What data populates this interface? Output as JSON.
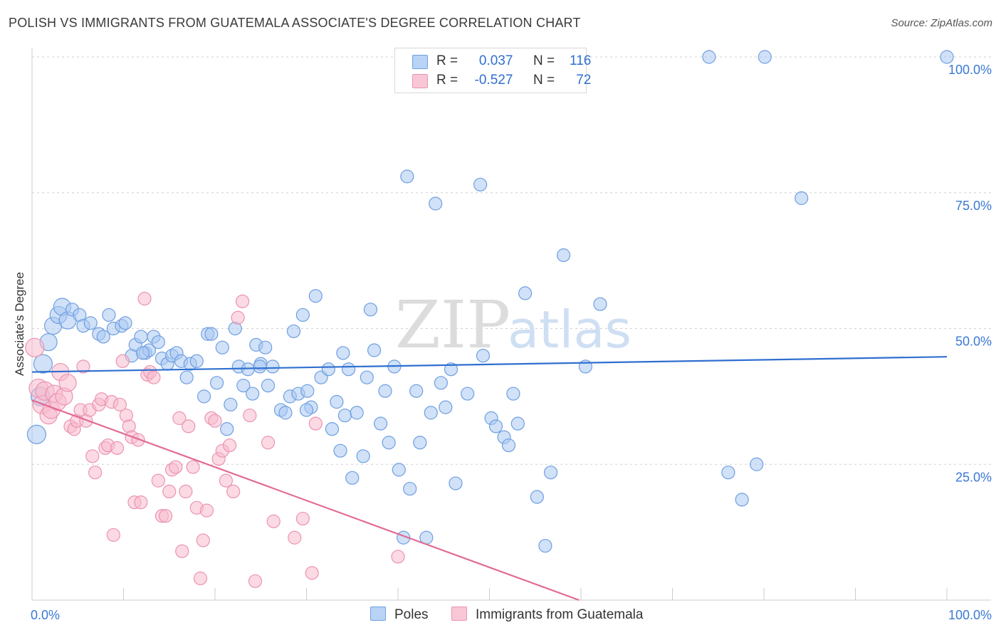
{
  "title": "POLISH VS IMMIGRANTS FROM GUATEMALA ASSOCIATE'S DEGREE CORRELATION CHART",
  "source": "Source: ZipAtlas.com",
  "watermark": {
    "zip": "ZIP",
    "atlas": "atlas"
  },
  "legend": {
    "r_label": "R =",
    "n_label": "N =",
    "rows": [
      {
        "r": "0.037",
        "n": "116"
      },
      {
        "r": "-0.527",
        "n": "72"
      }
    ]
  },
  "colors": {
    "poles_fill": "#a9c8f2",
    "poles_stroke": "#6f9fe0",
    "poles_line": "#2f6fd0",
    "guatemala_fill": "#f7bccd",
    "guatemala_stroke": "#ec93b0",
    "guatemala_line": "#e26b96",
    "tick_text": "#3a78d4",
    "grid": "#d0d0d0"
  },
  "chart_data": {
    "type": "scatter",
    "title": "POLISH VS IMMIGRANTS FROM GUATEMALA ASSOCIATE'S DEGREE CORRELATION CHART",
    "xlabel": "",
    "ylabel": "Associate's Degree",
    "xlim": [
      0,
      100
    ],
    "ylim": [
      0,
      100
    ],
    "x_tick_labels": [
      "0.0%",
      "100.0%"
    ],
    "y_ticks": [
      25,
      50,
      75,
      100
    ],
    "y_tick_labels": [
      "25.0%",
      "50.0%",
      "75.0%",
      "100.0%"
    ],
    "grid": "horizontal dashed",
    "legend_placement": "bottom-center",
    "series": [
      {
        "name": "Poles",
        "R": 0.037,
        "N": 116,
        "trend": {
          "x": [
            0,
            100
          ],
          "y": [
            42.0,
            44.8
          ]
        },
        "points": [
          [
            0.5,
            30.5
          ],
          [
            0.9,
            37.5
          ],
          [
            1.2,
            43.5
          ],
          [
            1.8,
            47.5
          ],
          [
            2.3,
            50.5
          ],
          [
            2.9,
            52.5
          ],
          [
            3.3,
            54.0
          ],
          [
            3.9,
            51.5
          ],
          [
            4.4,
            53.5
          ],
          [
            5.2,
            52.5
          ],
          [
            5.6,
            50.5
          ],
          [
            6.4,
            51.0
          ],
          [
            7.3,
            49.0
          ],
          [
            7.8,
            48.5
          ],
          [
            8.4,
            52.5
          ],
          [
            8.9,
            50.0
          ],
          [
            9.8,
            50.5
          ],
          [
            10.2,
            51.0
          ],
          [
            10.9,
            45.0
          ],
          [
            11.3,
            47.0
          ],
          [
            11.9,
            48.5
          ],
          [
            12.4,
            45.5
          ],
          [
            12.8,
            46.0
          ],
          [
            13.3,
            48.5
          ],
          [
            13.8,
            47.5
          ],
          [
            14.2,
            44.5
          ],
          [
            14.8,
            43.5
          ],
          [
            15.3,
            45.0
          ],
          [
            15.8,
            45.5
          ],
          [
            16.3,
            44.0
          ],
          [
            16.9,
            41.0
          ],
          [
            17.3,
            43.5
          ],
          [
            18.0,
            44.0
          ],
          [
            18.8,
            37.5
          ],
          [
            19.2,
            49.0
          ],
          [
            19.6,
            49.0
          ],
          [
            20.2,
            40.0
          ],
          [
            20.8,
            46.5
          ],
          [
            21.3,
            31.5
          ],
          [
            21.7,
            36.0
          ],
          [
            22.2,
            50.0
          ],
          [
            22.6,
            43.0
          ],
          [
            23.1,
            39.5
          ],
          [
            23.6,
            42.5
          ],
          [
            24.1,
            38.0
          ],
          [
            24.5,
            47.0
          ],
          [
            25.0,
            43.5
          ],
          [
            25.5,
            46.5
          ],
          [
            25.8,
            39.5
          ],
          [
            26.3,
            43.0
          ],
          [
            27.2,
            35.0
          ],
          [
            27.7,
            34.5
          ],
          [
            28.2,
            37.5
          ],
          [
            28.6,
            49.5
          ],
          [
            29.1,
            38.0
          ],
          [
            29.6,
            52.5
          ],
          [
            30.1,
            38.5
          ],
          [
            30.5,
            35.5
          ],
          [
            31.0,
            56.0
          ],
          [
            31.6,
            41.0
          ],
          [
            32.4,
            42.5
          ],
          [
            32.8,
            31.5
          ],
          [
            33.3,
            36.5
          ],
          [
            33.7,
            27.5
          ],
          [
            34.2,
            34.0
          ],
          [
            34.6,
            42.5
          ],
          [
            35.0,
            22.5
          ],
          [
            35.5,
            34.5
          ],
          [
            36.2,
            26.5
          ],
          [
            36.6,
            41.0
          ],
          [
            37.0,
            53.5
          ],
          [
            37.4,
            46.0
          ],
          [
            38.1,
            32.5
          ],
          [
            38.6,
            38.5
          ],
          [
            39.0,
            29.0
          ],
          [
            39.6,
            43.0
          ],
          [
            40.1,
            24.0
          ],
          [
            40.6,
            11.5
          ],
          [
            41.3,
            20.5
          ],
          [
            42.0,
            38.5
          ],
          [
            42.4,
            29.0
          ],
          [
            43.1,
            11.5
          ],
          [
            43.6,
            34.5
          ],
          [
            44.1,
            73.0
          ],
          [
            44.7,
            40.0
          ],
          [
            45.2,
            35.5
          ],
          [
            45.8,
            42.5
          ],
          [
            46.3,
            21.5
          ],
          [
            47.6,
            38.0
          ],
          [
            49.0,
            76.5
          ],
          [
            49.3,
            45.0
          ],
          [
            50.2,
            33.5
          ],
          [
            50.7,
            32.0
          ],
          [
            51.6,
            30.0
          ],
          [
            52.1,
            28.5
          ],
          [
            52.6,
            38.0
          ],
          [
            53.1,
            32.5
          ],
          [
            53.9,
            56.5
          ],
          [
            55.2,
            19.0
          ],
          [
            56.1,
            10.0
          ],
          [
            56.7,
            23.5
          ],
          [
            58.1,
            63.5
          ],
          [
            60.5,
            43.0
          ],
          [
            62.1,
            54.5
          ],
          [
            74.0,
            100.0
          ],
          [
            76.1,
            23.5
          ],
          [
            77.6,
            18.5
          ],
          [
            79.2,
            25.0
          ],
          [
            80.1,
            100.0
          ],
          [
            84.1,
            74.0
          ],
          [
            100.0,
            100.0
          ],
          [
            12.1,
            45.5
          ],
          [
            24.9,
            43.0
          ],
          [
            30.0,
            35.0
          ],
          [
            41.0,
            78.0
          ],
          [
            34.0,
            45.5
          ]
        ]
      },
      {
        "name": "Immigrants from Guatemala",
        "R": -0.527,
        "N": 72,
        "trend": {
          "x": [
            0,
            59.8
          ],
          "y": [
            36.8,
            0.0
          ]
        },
        "points": [
          [
            0.3,
            46.5
          ],
          [
            0.7,
            39.0
          ],
          [
            1.1,
            36.0
          ],
          [
            1.4,
            38.5
          ],
          [
            1.8,
            34.0
          ],
          [
            2.1,
            35.0
          ],
          [
            2.4,
            38.0
          ],
          [
            2.8,
            36.5
          ],
          [
            3.1,
            42.0
          ],
          [
            3.5,
            37.5
          ],
          [
            3.9,
            40.0
          ],
          [
            4.2,
            32.0
          ],
          [
            4.6,
            31.5
          ],
          [
            4.9,
            33.0
          ],
          [
            5.3,
            35.0
          ],
          [
            5.6,
            43.0
          ],
          [
            5.9,
            33.0
          ],
          [
            6.3,
            35.0
          ],
          [
            6.6,
            26.5
          ],
          [
            6.9,
            23.5
          ],
          [
            7.3,
            36.0
          ],
          [
            7.6,
            37.0
          ],
          [
            8.0,
            28.0
          ],
          [
            8.3,
            28.5
          ],
          [
            8.7,
            36.5
          ],
          [
            8.9,
            12.0
          ],
          [
            9.3,
            28.0
          ],
          [
            9.6,
            36.0
          ],
          [
            9.9,
            44.0
          ],
          [
            10.3,
            34.0
          ],
          [
            10.6,
            32.0
          ],
          [
            10.9,
            30.0
          ],
          [
            11.2,
            18.0
          ],
          [
            11.6,
            29.5
          ],
          [
            11.9,
            18.0
          ],
          [
            12.3,
            55.5
          ],
          [
            12.6,
            41.5
          ],
          [
            12.9,
            42.0
          ],
          [
            13.3,
            41.0
          ],
          [
            13.8,
            22.0
          ],
          [
            14.2,
            15.5
          ],
          [
            14.6,
            15.5
          ],
          [
            15.0,
            20.0
          ],
          [
            15.3,
            24.0
          ],
          [
            15.7,
            24.5
          ],
          [
            16.1,
            33.5
          ],
          [
            16.4,
            9.0
          ],
          [
            16.8,
            20.0
          ],
          [
            17.1,
            32.0
          ],
          [
            17.6,
            24.5
          ],
          [
            18.0,
            17.0
          ],
          [
            18.4,
            4.0
          ],
          [
            18.7,
            11.0
          ],
          [
            19.1,
            16.5
          ],
          [
            19.6,
            33.5
          ],
          [
            20.0,
            33.0
          ],
          [
            20.4,
            26.0
          ],
          [
            20.8,
            27.5
          ],
          [
            21.2,
            22.0
          ],
          [
            21.6,
            28.5
          ],
          [
            22.0,
            20.0
          ],
          [
            22.5,
            52.0
          ],
          [
            23.0,
            55.0
          ],
          [
            23.8,
            34.0
          ],
          [
            24.4,
            3.5
          ],
          [
            25.8,
            29.0
          ],
          [
            26.4,
            14.5
          ],
          [
            28.7,
            11.5
          ],
          [
            29.6,
            15.0
          ],
          [
            30.6,
            5.0
          ],
          [
            40.0,
            8.0
          ],
          [
            31.0,
            32.5
          ]
        ]
      }
    ]
  }
}
